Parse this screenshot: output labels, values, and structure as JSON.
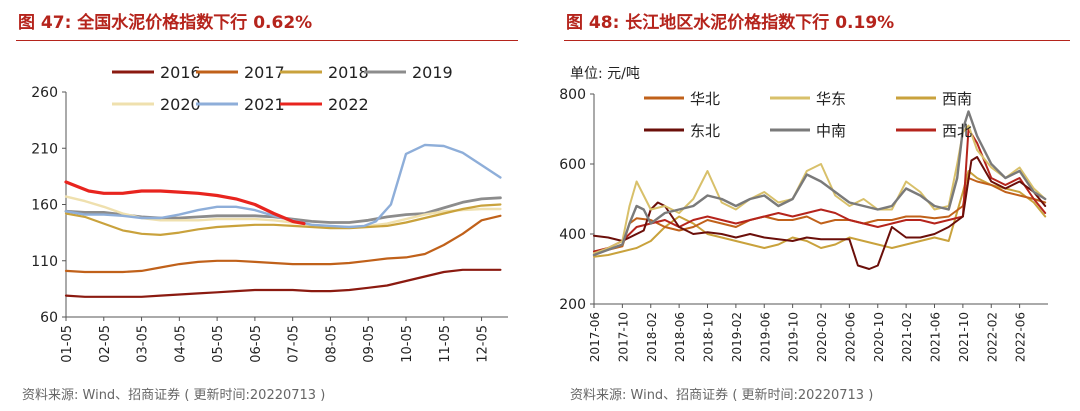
{
  "left": {
    "title": "图 47:  全国水泥价格指数下行 0.62%",
    "source": "资料来源:  Wind、招商证券 ( 更新时间:20220713 )"
  },
  "right": {
    "title": "图 48:  长江地区水泥价格指数下行 0.19%",
    "source": "资料来源:  Wind、招商证券 ( 更新时间:20220713 )",
    "unit_label": "单位:  元/吨"
  },
  "chart_data": [
    {
      "type": "line",
      "title": "全国水泥价格指数下行 0.62%",
      "xlabel": "",
      "ylabel": "",
      "categories": [
        "01-05",
        "02-05",
        "03-05",
        "04-05",
        "05-05",
        "06-05",
        "07-05",
        "08-05",
        "09-05",
        "10-05",
        "11-05",
        "12-05"
      ],
      "ylim": [
        60,
        260
      ],
      "yticks": [
        60,
        110,
        160,
        210,
        260
      ],
      "legend_position": "top",
      "series": [
        {
          "name": "2016",
          "color": "#8b1a10",
          "width": 2.2,
          "x": [
            0,
            0.5,
            1,
            1.5,
            2,
            2.5,
            3,
            3.5,
            4,
            4.5,
            5,
            5.5,
            6,
            6.5,
            7,
            7.5,
            8,
            8.5,
            9,
            9.5,
            10,
            10.5,
            11,
            11.5
          ],
          "values": [
            79,
            78,
            78,
            78,
            78,
            79,
            80,
            81,
            82,
            83,
            84,
            84,
            84,
            83,
            83,
            84,
            86,
            88,
            92,
            96,
            100,
            102,
            102,
            102
          ]
        },
        {
          "name": "2017",
          "color": "#c0611a",
          "width": 2.2,
          "x": [
            0,
            0.5,
            1,
            1.5,
            2,
            2.5,
            3,
            3.5,
            4,
            4.5,
            5,
            5.5,
            6,
            6.5,
            7,
            7.5,
            8,
            8.5,
            9,
            9.5,
            10,
            10.5,
            11,
            11.5
          ],
          "values": [
            101,
            100,
            100,
            100,
            101,
            104,
            107,
            109,
            110,
            110,
            109,
            108,
            107,
            107,
            107,
            108,
            110,
            112,
            113,
            116,
            124,
            134,
            146,
            150
          ]
        },
        {
          "name": "2018",
          "color": "#c9a23c",
          "width": 2.2,
          "x": [
            0,
            0.5,
            1,
            1.5,
            2,
            2.5,
            3,
            3.5,
            4,
            4.5,
            5,
            5.5,
            6,
            6.5,
            7,
            7.5,
            8,
            8.5,
            9,
            9.5,
            10,
            10.5,
            11,
            11.5
          ],
          "values": [
            152,
            149,
            143,
            137,
            134,
            133,
            135,
            138,
            140,
            141,
            142,
            142,
            141,
            140,
            139,
            139,
            140,
            141,
            144,
            148,
            152,
            156,
            159,
            160
          ]
        },
        {
          "name": "2019",
          "color": "#8c8c8c",
          "width": 2.8,
          "x": [
            0,
            0.5,
            1,
            1.5,
            2,
            2.5,
            3,
            3.5,
            4,
            4.5,
            5,
            5.5,
            6,
            6.5,
            7,
            7.5,
            8,
            8.5,
            9,
            9.5,
            10,
            10.5,
            11,
            11.5
          ],
          "values": [
            154,
            153,
            153,
            151,
            149,
            148,
            148,
            149,
            150,
            150,
            150,
            149,
            147,
            145,
            144,
            144,
            146,
            149,
            151,
            152,
            157,
            162,
            165,
            166
          ]
        },
        {
          "name": "2020",
          "color": "#efe0ae",
          "width": 2.4,
          "x": [
            0,
            0.5,
            1,
            1.5,
            2,
            2.5,
            3,
            3.5,
            4,
            4.5,
            5,
            5.5,
            6,
            6.5,
            7,
            7.5,
            8,
            8.5,
            9,
            9.5,
            10,
            10.5,
            11,
            11.5
          ],
          "values": [
            167,
            163,
            158,
            152,
            148,
            146,
            146,
            146,
            147,
            147,
            147,
            146,
            144,
            142,
            140,
            140,
            141,
            143,
            147,
            151,
            154,
            155,
            156,
            156
          ]
        },
        {
          "name": "2021",
          "color": "#8eaed9",
          "width": 2.4,
          "x": [
            0,
            0.5,
            1,
            1.5,
            2,
            2.5,
            3,
            3.5,
            4,
            4.5,
            5,
            5.5,
            6,
            6.5,
            7,
            7.5,
            7.9,
            8.2,
            8.6,
            9,
            9.5,
            10,
            10.5,
            11,
            11.5
          ],
          "values": [
            154,
            151,
            151,
            150,
            148,
            148,
            151,
            155,
            158,
            158,
            155,
            150,
            146,
            142,
            141,
            140,
            141,
            145,
            160,
            205,
            213,
            212,
            206,
            195,
            184
          ]
        },
        {
          "name": "2022",
          "color": "#e8241e",
          "width": 3.2,
          "x": [
            0,
            0.3,
            0.6,
            1,
            1.5,
            2,
            2.5,
            3,
            3.5,
            4,
            4.5,
            5,
            5.5,
            6,
            6.3
          ],
          "values": [
            180,
            176,
            172,
            170,
            170,
            172,
            172,
            171,
            170,
            168,
            165,
            160,
            152,
            145,
            143
          ]
        }
      ]
    },
    {
      "type": "line",
      "title": "长江地区水泥价格指数下行 0.19%",
      "xlabel": "",
      "ylabel": "元/吨",
      "categories": [
        "2017-06",
        "2017-10",
        "2018-02",
        "2018-06",
        "2018-10",
        "2019-02",
        "2019-06",
        "2019-10",
        "2020-02",
        "2020-06",
        "2020-10",
        "2021-02",
        "2021-06",
        "2021-10",
        "2022-02",
        "2022-06"
      ],
      "ylim": [
        200,
        800
      ],
      "yticks": [
        200,
        400,
        600,
        800
      ],
      "legend_position": "top",
      "series": [
        {
          "name": "华北",
          "color": "#c0611a",
          "width": 2,
          "x": [
            0,
            0.5,
            1,
            1.25,
            1.5,
            2,
            2.5,
            3,
            3.5,
            4,
            4.5,
            5,
            5.5,
            6,
            6.5,
            7,
            7.5,
            8,
            8.5,
            9,
            9.5,
            10,
            10.5,
            11,
            11.5,
            12,
            12.5,
            13,
            13.2,
            13.5,
            14,
            14.5,
            15,
            15.5,
            15.9
          ],
          "values": [
            350,
            355,
            365,
            430,
            445,
            440,
            420,
            410,
            420,
            440,
            430,
            420,
            440,
            450,
            440,
            440,
            450,
            430,
            440,
            440,
            430,
            440,
            440,
            450,
            450,
            445,
            450,
            480,
            560,
            550,
            540,
            520,
            510,
            500,
            490
          ]
        },
        {
          "name": "华东",
          "color": "#d8c06a",
          "width": 2,
          "x": [
            0,
            0.5,
            1,
            1.25,
            1.5,
            1.75,
            2,
            2.5,
            3,
            3.5,
            4,
            4.5,
            5,
            5.5,
            6,
            6.5,
            7,
            7.5,
            8,
            8.5,
            9,
            9.5,
            10,
            10.5,
            11,
            11.5,
            12,
            12.5,
            12.8,
            13,
            13.2,
            13.5,
            14,
            14.5,
            15,
            15.5,
            15.9
          ],
          "values": [
            345,
            360,
            380,
            480,
            550,
            510,
            470,
            480,
            460,
            500,
            580,
            490,
            470,
            500,
            520,
            490,
            500,
            580,
            600,
            510,
            480,
            500,
            470,
            470,
            550,
            520,
            470,
            480,
            600,
            690,
            710,
            640,
            590,
            560,
            590,
            530,
            500
          ]
        },
        {
          "name": "西南",
          "color": "#c9a23c",
          "width": 2,
          "x": [
            0,
            0.5,
            1,
            1.5,
            2,
            2.5,
            3,
            3.5,
            4,
            4.5,
            5,
            5.5,
            6,
            6.5,
            7,
            7.5,
            8,
            8.5,
            9,
            9.5,
            10,
            10.5,
            11,
            11.5,
            12,
            12.5,
            13,
            13.2,
            13.5,
            14,
            14.5,
            15,
            15.5,
            15.9
          ],
          "values": [
            335,
            340,
            350,
            360,
            380,
            420,
            450,
            430,
            400,
            390,
            380,
            370,
            360,
            370,
            390,
            380,
            360,
            370,
            390,
            380,
            370,
            360,
            370,
            380,
            390,
            380,
            520,
            580,
            560,
            540,
            530,
            520,
            490,
            450
          ]
        },
        {
          "name": "东北",
          "color": "#6b0f0a",
          "width": 2,
          "x": [
            0,
            0.5,
            1,
            1.25,
            1.5,
            1.75,
            2,
            2.25,
            2.5,
            3,
            3.5,
            4,
            4.5,
            5,
            5.5,
            6,
            6.5,
            7,
            7.5,
            8,
            8.5,
            9,
            9.3,
            9.7,
            10,
            10.5,
            11,
            11.5,
            12,
            12.5,
            13,
            13.3,
            13.5,
            14,
            14.5,
            15,
            15.5,
            15.9
          ],
          "values": [
            395,
            390,
            380,
            390,
            400,
            410,
            470,
            490,
            480,
            420,
            400,
            405,
            400,
            390,
            400,
            390,
            385,
            380,
            390,
            385,
            385,
            385,
            310,
            300,
            310,
            420,
            390,
            390,
            400,
            420,
            450,
            610,
            620,
            550,
            530,
            550,
            520,
            480
          ]
        },
        {
          "name": "中南",
          "color": "#7a7a7a",
          "width": 2.4,
          "x": [
            0,
            0.5,
            1,
            1.25,
            1.5,
            1.75,
            2,
            2.5,
            3,
            3.5,
            4,
            4.5,
            5,
            5.5,
            6,
            6.5,
            7,
            7.5,
            8,
            8.5,
            9,
            9.5,
            10,
            10.5,
            11,
            11.5,
            12,
            12.5,
            12.8,
            13,
            13.2,
            13.5,
            14,
            14.5,
            15,
            15.5,
            15.9
          ],
          "values": [
            340,
            355,
            370,
            430,
            480,
            470,
            430,
            460,
            470,
            480,
            510,
            500,
            480,
            500,
            510,
            480,
            500,
            570,
            550,
            520,
            490,
            480,
            470,
            480,
            530,
            510,
            480,
            470,
            560,
            700,
            750,
            680,
            600,
            560,
            580,
            520,
            500
          ]
        },
        {
          "name": "西北",
          "color": "#b5241c",
          "width": 2,
          "x": [
            0,
            0.5,
            1,
            1.5,
            2,
            2.5,
            3,
            3.5,
            4,
            4.5,
            5,
            5.5,
            6,
            6.5,
            7,
            7.5,
            8,
            8.5,
            9,
            9.5,
            10,
            10.5,
            11,
            11.5,
            12,
            12.5,
            13,
            13.2,
            13.5,
            14,
            14.5,
            15,
            15.5,
            15.9
          ],
          "values": [
            350,
            360,
            380,
            420,
            430,
            440,
            420,
            440,
            450,
            440,
            430,
            440,
            450,
            460,
            450,
            460,
            470,
            460,
            440,
            430,
            420,
            430,
            440,
            440,
            430,
            440,
            450,
            700,
            660,
            560,
            540,
            560,
            500,
            460
          ]
        }
      ]
    }
  ]
}
